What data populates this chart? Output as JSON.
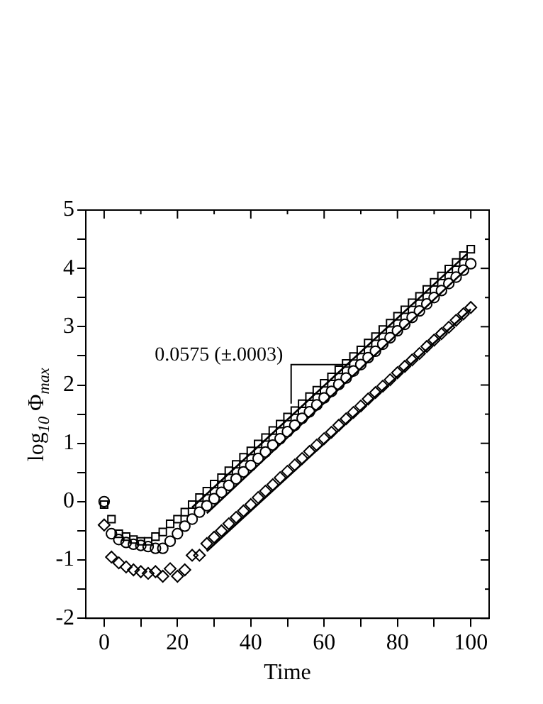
{
  "chart_data": {
    "type": "scatter",
    "xlabel": "Time",
    "ylabel": "log$_{10}$ Φ$_{max}$",
    "xlim": [
      -5,
      105
    ],
    "xticks": [
      0,
      {
        "value": 10,
        "label": null
      },
      20,
      {
        "value": 30,
        "label": null
      },
      40,
      {
        "value": 50,
        "label": null
      },
      60,
      {
        "value": 70,
        "label": null
      },
      80,
      {
        "value": 90,
        "label": null
      },
      100
    ],
    "ylim": [
      -2,
      5
    ],
    "yticks": [
      -2,
      {
        "value": -1.5,
        "label": null
      },
      -1,
      {
        "value": -0.5,
        "label": null
      },
      0,
      {
        "value": 0.5,
        "label": null
      },
      1,
      {
        "value": 1.5,
        "label": null
      },
      2,
      {
        "value": 2.5,
        "label": null
      },
      3,
      {
        "value": 3.5,
        "label": null
      },
      4,
      {
        "value": 4.5,
        "label": null
      },
      5
    ],
    "grid": false,
    "legend": false,
    "annotations": [
      "0.0575 (±.0003)"
    ],
    "series": [
      {
        "marker": "square",
        "color": "#000000",
        "x": [
          0,
          2,
          4,
          6,
          8,
          10,
          12,
          14,
          16,
          18,
          20,
          22,
          24,
          26,
          28,
          30,
          32,
          34,
          36,
          38,
          40,
          42,
          44,
          46,
          48,
          50,
          52,
          54,
          56,
          58,
          60,
          62,
          64,
          66,
          68,
          70,
          72,
          74,
          76,
          78,
          80,
          82,
          84,
          86,
          88,
          90,
          92,
          94,
          96,
          98,
          100
        ],
        "values": [
          -0.05,
          -0.3,
          -0.55,
          -0.6,
          -0.65,
          -0.68,
          -0.68,
          -0.6,
          -0.52,
          -0.38,
          -0.3,
          -0.18,
          -0.05,
          0.07,
          0.18,
          0.3,
          0.41,
          0.53,
          0.64,
          0.76,
          0.87,
          0.99,
          1.1,
          1.22,
          1.33,
          1.45,
          1.56,
          1.68,
          1.8,
          1.91,
          2.03,
          2.14,
          2.26,
          2.37,
          2.49,
          2.6,
          2.72,
          2.83,
          2.95,
          3.06,
          3.18,
          3.29,
          3.41,
          3.52,
          3.64,
          3.76,
          3.87,
          3.99,
          4.1,
          4.22,
          4.33
        ]
      },
      {
        "marker": "circle",
        "color": "#000000",
        "x": [
          0,
          2,
          4,
          6,
          8,
          10,
          12,
          14,
          16,
          18,
          20,
          22,
          24,
          26,
          28,
          30,
          32,
          34,
          36,
          38,
          40,
          42,
          44,
          46,
          48,
          50,
          52,
          54,
          56,
          58,
          60,
          62,
          64,
          66,
          68,
          70,
          72,
          74,
          76,
          78,
          80,
          82,
          84,
          86,
          88,
          90,
          92,
          94,
          96,
          98,
          100
        ],
        "values": [
          0.0,
          -0.55,
          -0.65,
          -0.7,
          -0.73,
          -0.75,
          -0.77,
          -0.8,
          -0.8,
          -0.68,
          -0.55,
          -0.42,
          -0.3,
          -0.18,
          -0.07,
          0.05,
          0.16,
          0.28,
          0.39,
          0.51,
          0.62,
          0.74,
          0.85,
          0.97,
          1.08,
          1.2,
          1.31,
          1.43,
          1.54,
          1.66,
          1.78,
          1.89,
          2.01,
          2.12,
          2.24,
          2.35,
          2.47,
          2.58,
          2.7,
          2.81,
          2.93,
          3.04,
          3.16,
          3.27,
          3.39,
          3.5,
          3.62,
          3.74,
          3.85,
          3.97,
          4.08
        ]
      },
      {
        "marker": "diamond",
        "color": "#000000",
        "x": [
          0,
          2,
          4,
          6,
          8,
          10,
          12,
          14,
          16,
          18,
          20,
          22,
          24,
          26,
          28,
          30,
          32,
          34,
          36,
          38,
          40,
          42,
          44,
          46,
          48,
          50,
          52,
          54,
          56,
          58,
          60,
          62,
          64,
          66,
          68,
          70,
          72,
          74,
          76,
          78,
          80,
          82,
          84,
          86,
          88,
          90,
          92,
          94,
          96,
          98,
          100
        ],
        "values": [
          -0.4,
          -0.95,
          -1.05,
          -1.12,
          -1.17,
          -1.2,
          -1.23,
          -1.2,
          -1.28,
          -1.15,
          -1.28,
          -1.17,
          -0.92,
          -0.92,
          -0.72,
          -0.61,
          -0.5,
          -0.38,
          -0.27,
          -0.16,
          -0.05,
          0.07,
          0.18,
          0.29,
          0.41,
          0.52,
          0.63,
          0.74,
          0.86,
          0.97,
          1.08,
          1.19,
          1.31,
          1.42,
          1.53,
          1.64,
          1.76,
          1.87,
          1.98,
          2.09,
          2.21,
          2.32,
          2.43,
          2.54,
          2.66,
          2.77,
          2.88,
          2.99,
          3.11,
          3.22,
          3.33
        ]
      },
      {
        "type": "line",
        "marker": "none",
        "line_style": "solid",
        "color": "#000000",
        "x": [
          24,
          99
        ],
        "values": [
          -0.1,
          4.25
        ]
      },
      {
        "type": "line",
        "marker": "none",
        "line_style": "solid",
        "color": "#000000",
        "x": [
          28,
          99
        ],
        "values": [
          -0.2,
          4.0
        ]
      },
      {
        "type": "line",
        "marker": "none",
        "line_style": "solid",
        "color": "#000000",
        "x": [
          28,
          100
        ],
        "values": [
          -0.85,
          3.3
        ]
      }
    ]
  }
}
